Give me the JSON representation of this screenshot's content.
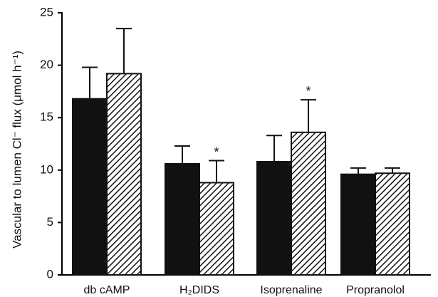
{
  "chart_data": {
    "type": "bar",
    "categories": [
      "db cAMP",
      "H2DIDS",
      "Isoprenaline",
      "Propranolol"
    ],
    "category_labels": [
      "db cAMP",
      "H₂DIDS",
      "Isoprenaline",
      "Propranolol"
    ],
    "ylabel": "Vascular to lumen Cl⁻ flux (μmol h⁻¹)",
    "ylim": [
      0,
      25
    ],
    "yticks": [
      0,
      5,
      10,
      15,
      20,
      25
    ],
    "series": [
      {
        "fill": "solid",
        "color": "#111111",
        "values": [
          16.8,
          10.6,
          10.8,
          9.6
        ],
        "errors": [
          3.0,
          1.7,
          2.5,
          0.6
        ]
      },
      {
        "fill": "hatched",
        "color": "#111111",
        "values": [
          19.2,
          8.8,
          13.6,
          9.7
        ],
        "errors": [
          4.3,
          2.1,
          3.1,
          0.5
        ]
      }
    ],
    "significance": [
      {
        "category": "H2DIDS",
        "series": 1,
        "marker": "*"
      },
      {
        "category": "Isoprenaline",
        "series": 1,
        "marker": "*"
      }
    ],
    "grid": false,
    "legend": "none"
  }
}
